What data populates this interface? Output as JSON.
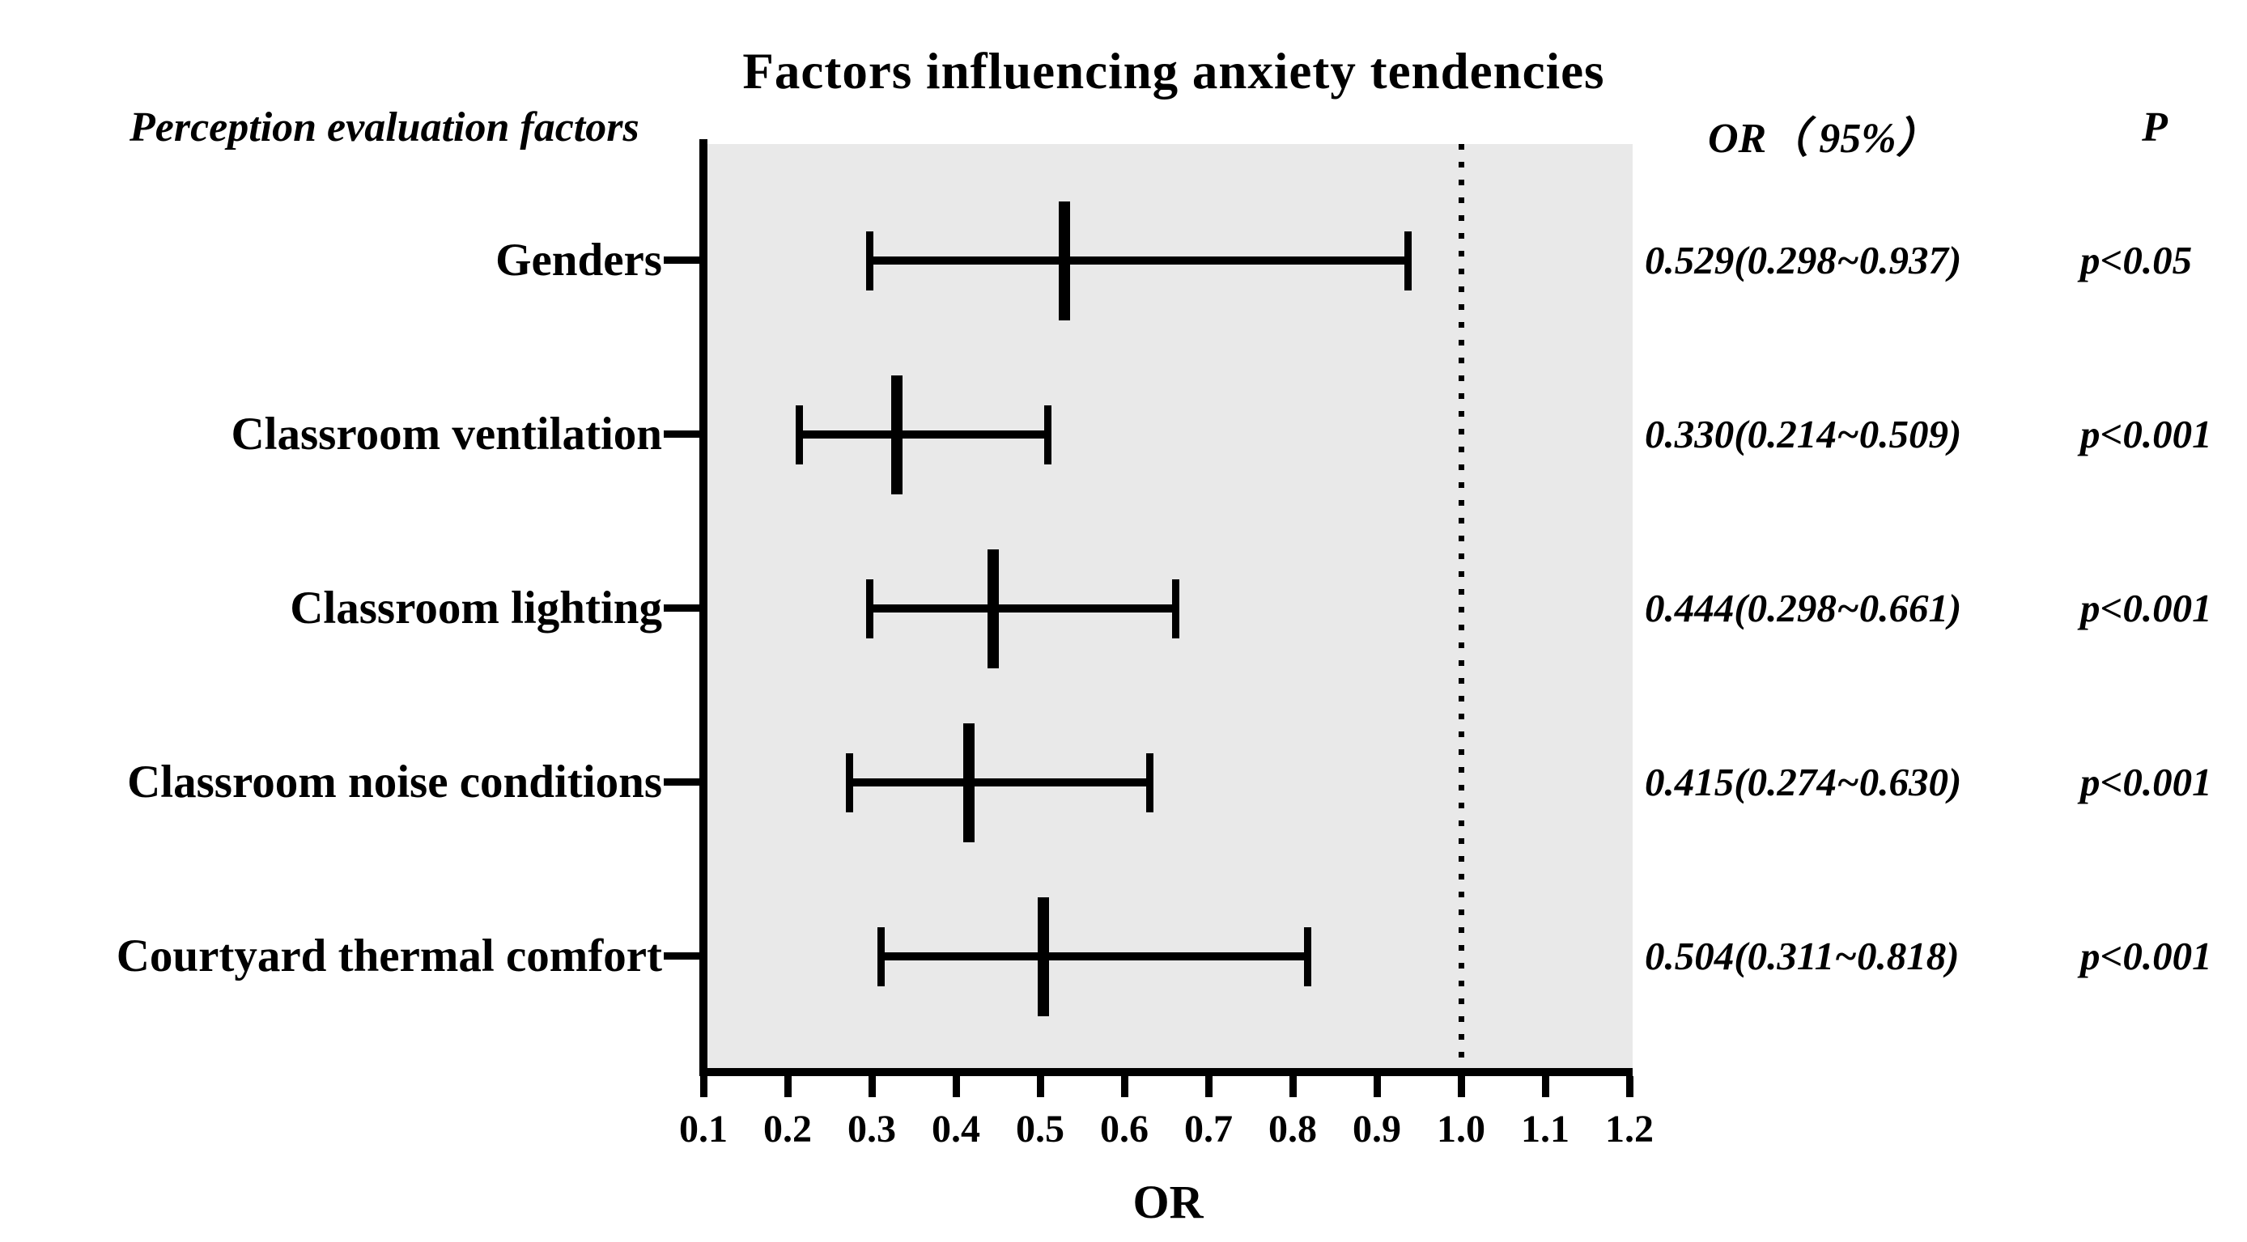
{
  "title": "Factors influencing anxiety tendencies",
  "headers": {
    "left": "Perception evaluation factors",
    "or": "OR（ 95%）",
    "p": "P"
  },
  "colors": {
    "plot_bg": "#e9e9e9",
    "ink": "#000000"
  },
  "chart_data": {
    "type": "forest",
    "title": "Factors influencing anxiety tendencies",
    "xlabel": "OR",
    "xlim": [
      0.1,
      1.2
    ],
    "x_ticks": [
      "0.1",
      "0.2",
      "0.3",
      "0.4",
      "0.5",
      "0.6",
      "0.7",
      "0.8",
      "0.9",
      "1.0",
      "1.1",
      "1.2"
    ],
    "reference_line": 1.0,
    "reference_line_style": "dotted",
    "grid": false,
    "rows": [
      {
        "label": "Genders",
        "or": 0.529,
        "ci_low": 0.298,
        "ci_high": 0.937,
        "or_text": "0.529(0.298~0.937)",
        "p_text": "p<0.05"
      },
      {
        "label": "Classroom ventilation",
        "or": 0.33,
        "ci_low": 0.214,
        "ci_high": 0.509,
        "or_text": "0.330(0.214~0.509)",
        "p_text": "p<0.001"
      },
      {
        "label": "Classroom lighting",
        "or": 0.444,
        "ci_low": 0.298,
        "ci_high": 0.661,
        "or_text": "0.444(0.298~0.661)",
        "p_text": "p<0.001"
      },
      {
        "label": "Classroom noise conditions",
        "or": 0.415,
        "ci_low": 0.274,
        "ci_high": 0.63,
        "or_text": "0.415(0.274~0.630)",
        "p_text": "p<0.001"
      },
      {
        "label": "Courtyard thermal comfort",
        "or": 0.504,
        "ci_low": 0.311,
        "ci_high": 0.818,
        "or_text": "0.504(0.311~0.818)",
        "p_text": "p<0.001"
      }
    ]
  }
}
